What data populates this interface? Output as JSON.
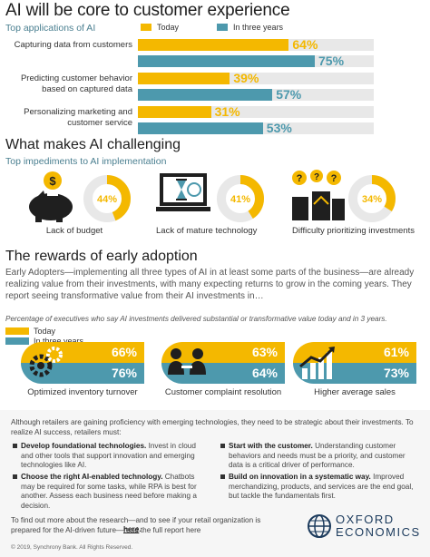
{
  "sec1": {
    "title": "AI will be core to customer experience",
    "subtitle": "Top applications of AI",
    "legend_today": "Today",
    "legend_future": "In three years"
  },
  "chart_data": {
    "type": "bar",
    "categories": [
      "Capturing data from customers",
      "Predicting customer behavior based on captured data",
      "Personalizing marketing and customer service"
    ],
    "series": [
      {
        "name": "Today",
        "values": [
          64,
          39,
          31
        ],
        "color": "#f4b800"
      },
      {
        "name": "In three years",
        "values": [
          75,
          57,
          53
        ],
        "color": "#4d99ad"
      }
    ],
    "labels": [
      "64%",
      "75%",
      "39%",
      "57%",
      "31%",
      "53%"
    ],
    "ylim": [
      0,
      100
    ]
  },
  "sec2": {
    "title": "What makes AI challenging",
    "subtitle": "Top impediments to AI implementation",
    "items": [
      {
        "value": 44,
        "label": "44%",
        "caption": "Lack of budget",
        "icon": "piggy-bank-icon"
      },
      {
        "value": 41,
        "label": "41%",
        "caption": "Lack of mature technology",
        "icon": "laptop-hourglass-icon"
      },
      {
        "value": 34,
        "label": "34%",
        "caption": "Difficulty prioritizing investments",
        "icon": "question-coins-icon"
      }
    ]
  },
  "sec3": {
    "title": "The rewards of early adoption",
    "paragraph": "Early Adopters—implementing all three types of AI in at least some parts of the business—are already realizing value from their investments, with many expecting returns to grow in the coming years. They report seeing transformative value from their AI investments in…",
    "note": "Percentage of executives who say AI investments delivered substantial or transformative value today and in 3 years.",
    "legend_today": "Today",
    "legend_future": "In three years",
    "cards": [
      {
        "today": "66%",
        "future": "76%",
        "caption": "Optimized inventory turnover",
        "icon": "gears-icon"
      },
      {
        "today": "63%",
        "future": "64%",
        "caption": "Customer complaint resolution",
        "icon": "people-meeting-icon"
      },
      {
        "today": "61%",
        "future": "73%",
        "caption": "Higher average sales",
        "icon": "growth-chart-icon"
      }
    ]
  },
  "panel": {
    "intro": "Although retailers are gaining proficiency with emerging technologies, they need to be strategic about their investments. To realize AI success, retailers must:",
    "left": [
      {
        "head": "Develop foundational technologies.",
        "body": " Invest in cloud and other tools that support innovation and emerging technologies like AI."
      },
      {
        "head": "Choose the right AI-enabled technology.",
        "body": " Chatbots may be required for some tasks, while RPA is best for another. Assess each business need before making a decision."
      }
    ],
    "right": [
      {
        "head": "Start with the customer.",
        "body": " Understanding customer behaviors and needs must be a priority, and customer data is a critical driver of performance."
      },
      {
        "head": "Build on innovation in a systematic way.",
        "body": " Improved merchandizing, products, and services are the end goal, but tackle the fundamentals first."
      }
    ],
    "findout": "To find out more about the research—and to see if your retail organization is prepared for the AI-driven future—read the full report here ",
    "link": "here",
    "link_end": ".",
    "logo_line1": "OXFORD",
    "logo_line2": "ECONOMICS",
    "copyright": "© 2019, Synchrony Bank. All Rights Reserved."
  },
  "colors": {
    "yellow": "#f4b800",
    "teal": "#4d99ad",
    "track": "#e8e8e8"
  }
}
